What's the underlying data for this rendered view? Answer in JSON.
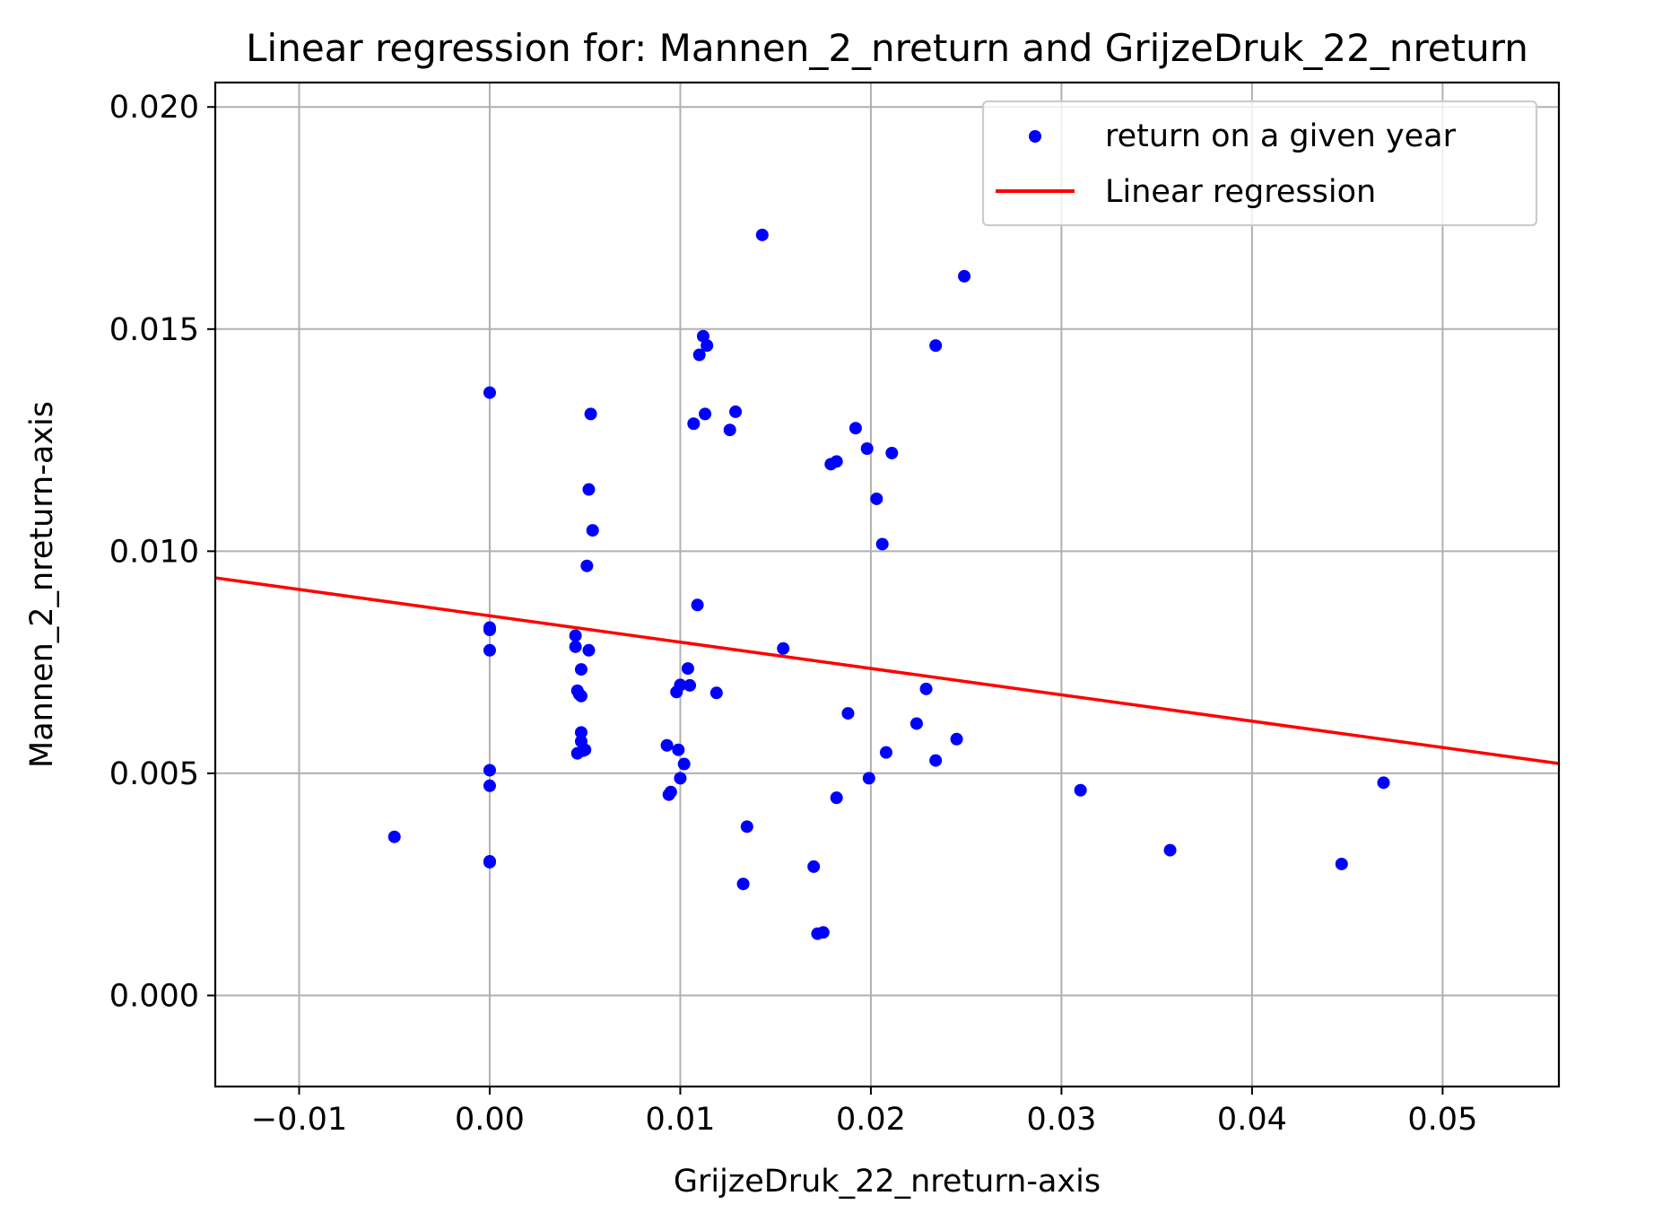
{
  "chart_data": {
    "type": "scatter",
    "title": "Linear regression for: Mannen_2_nreturn and GrijzeDruk_22_nreturn",
    "xlabel": "GrijzeDruk_22_nreturn-axis",
    "ylabel": "Mannen_2_nreturn-axis",
    "xlim": [
      -0.0144,
      0.0561
    ],
    "ylim": [
      -0.00205,
      0.02055
    ],
    "xticks": [
      -0.01,
      0.0,
      0.01,
      0.02,
      0.03,
      0.04,
      0.05
    ],
    "xtick_labels": [
      "−0.01",
      "0.00",
      "0.01",
      "0.02",
      "0.03",
      "0.04",
      "0.05"
    ],
    "yticks": [
      0.0,
      0.005,
      0.01,
      0.015,
      0.02
    ],
    "ytick_labels": [
      "0.000",
      "0.005",
      "0.010",
      "0.015",
      "0.020"
    ],
    "grid": true,
    "legend_position": "top-right",
    "series": [
      {
        "name": "return on a given year",
        "type": "scatter",
        "color": "#0000ff",
        "points": [
          [
            -0.005,
            0.00357
          ],
          [
            0.0,
            0.01357
          ],
          [
            0.0,
            0.00828
          ],
          [
            0.0,
            0.00823
          ],
          [
            0.0,
            0.00777
          ],
          [
            0.0,
            0.00507
          ],
          [
            0.0,
            0.00472
          ],
          [
            0.0,
            0.00302
          ],
          [
            0.0,
            0.003
          ],
          [
            0.0045,
            0.0081
          ],
          [
            0.0045,
            0.00785
          ],
          [
            0.0046,
            0.00686
          ],
          [
            0.0046,
            0.00545
          ],
          [
            0.0047,
            0.00678
          ],
          [
            0.0048,
            0.00674
          ],
          [
            0.0048,
            0.00734
          ],
          [
            0.0048,
            0.00592
          ],
          [
            0.0048,
            0.00572
          ],
          [
            0.0049,
            0.00551
          ],
          [
            0.005,
            0.00553
          ],
          [
            0.0051,
            0.00967
          ],
          [
            0.0052,
            0.01139
          ],
          [
            0.0052,
            0.00777
          ],
          [
            0.0053,
            0.01309
          ],
          [
            0.0054,
            0.01047
          ],
          [
            0.0093,
            0.00563
          ],
          [
            0.0094,
            0.00452
          ],
          [
            0.0095,
            0.00458
          ],
          [
            0.0098,
            0.00683
          ],
          [
            0.0099,
            0.00553
          ],
          [
            0.01,
            0.00699
          ],
          [
            0.01,
            0.00489
          ],
          [
            0.0102,
            0.00521
          ],
          [
            0.0104,
            0.00736
          ],
          [
            0.0105,
            0.00698
          ],
          [
            0.0107,
            0.01287
          ],
          [
            0.0109,
            0.00879
          ],
          [
            0.011,
            0.01442
          ],
          [
            0.0112,
            0.01484
          ],
          [
            0.0113,
            0.01309
          ],
          [
            0.0114,
            0.01463
          ],
          [
            0.0119,
            0.00681
          ],
          [
            0.0126,
            0.01273
          ],
          [
            0.0129,
            0.01314
          ],
          [
            0.0133,
            0.00251
          ],
          [
            0.0135,
            0.0038
          ],
          [
            0.0143,
            0.01712
          ],
          [
            0.0154,
            0.00781
          ],
          [
            0.017,
            0.0029
          ],
          [
            0.0172,
            0.00139
          ],
          [
            0.0175,
            0.00142
          ],
          [
            0.0179,
            0.01196
          ],
          [
            0.0182,
            0.01202
          ],
          [
            0.0182,
            0.00445
          ],
          [
            0.0188,
            0.00635
          ],
          [
            0.0192,
            0.01277
          ],
          [
            0.0198,
            0.01231
          ],
          [
            0.0199,
            0.00489
          ],
          [
            0.0203,
            0.01118
          ],
          [
            0.0206,
            0.01016
          ],
          [
            0.0208,
            0.00547
          ],
          [
            0.0211,
            0.01221
          ],
          [
            0.0224,
            0.00612
          ],
          [
            0.0229,
            0.0069
          ],
          [
            0.0234,
            0.01463
          ],
          [
            0.0234,
            0.00529
          ],
          [
            0.0245,
            0.00577
          ],
          [
            0.0249,
            0.01619
          ],
          [
            0.031,
            0.00462
          ],
          [
            0.0357,
            0.00327
          ],
          [
            0.0447,
            0.00296
          ],
          [
            0.0469,
            0.00479
          ]
        ]
      },
      {
        "name": "Linear regression",
        "type": "line",
        "color": "#ff0000",
        "points": [
          [
            -0.0144,
            0.0094
          ],
          [
            0.0561,
            0.00522
          ]
        ]
      }
    ]
  }
}
